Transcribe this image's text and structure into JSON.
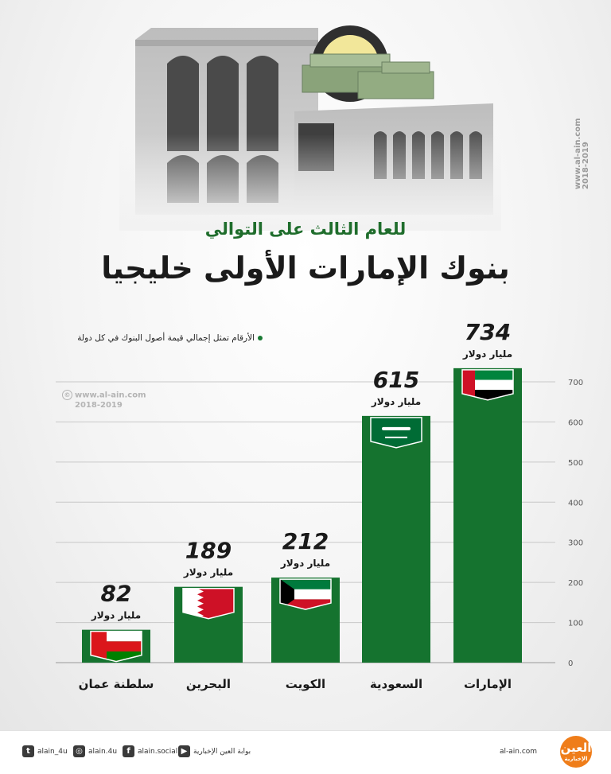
{
  "header": {
    "subtitle": "للعام الثالث على التوالي",
    "title": "بنوك الإمارات الأولى خليجيا"
  },
  "note": "الأرقام تمثل إجمالي قيمة أصول البنوك في كل دولة",
  "watermark": {
    "site": "www.al-ain.com",
    "years": "2018-2019",
    "copyright": "©"
  },
  "colors": {
    "bar": "#15732f",
    "accent": "#1f6d2c",
    "grid": "#c8c8c8"
  },
  "chart_data": {
    "type": "bar",
    "categories": [
      "الإمارات",
      "السعودية",
      "الكويت",
      "البحرين",
      "سلطنة عمان"
    ],
    "values": [
      734,
      615,
      212,
      189,
      82
    ],
    "value_labels": [
      "734",
      "615",
      "212",
      "189",
      "82"
    ],
    "unit_label": "مليار دولار",
    "flags": [
      "uae-flag",
      "saudi-flag",
      "kuwait-flag",
      "bahrain-flag",
      "oman-flag"
    ],
    "y_ticks": [
      0,
      100,
      200,
      300,
      400,
      500,
      600,
      700
    ],
    "ylim": [
      0,
      750
    ],
    "grid": true
  },
  "footer": {
    "site": "al-ain.com",
    "logo_text": "العين",
    "logo_sub": "الإخبارية",
    "socials": [
      {
        "icon": "youtube-icon",
        "label": "بوابة العين الإخبارية"
      },
      {
        "icon": "facebook-icon",
        "label": "alain.social"
      },
      {
        "icon": "instagram-icon",
        "label": "alain.4u"
      },
      {
        "icon": "twitter-icon",
        "label": "alain_4u"
      }
    ]
  }
}
